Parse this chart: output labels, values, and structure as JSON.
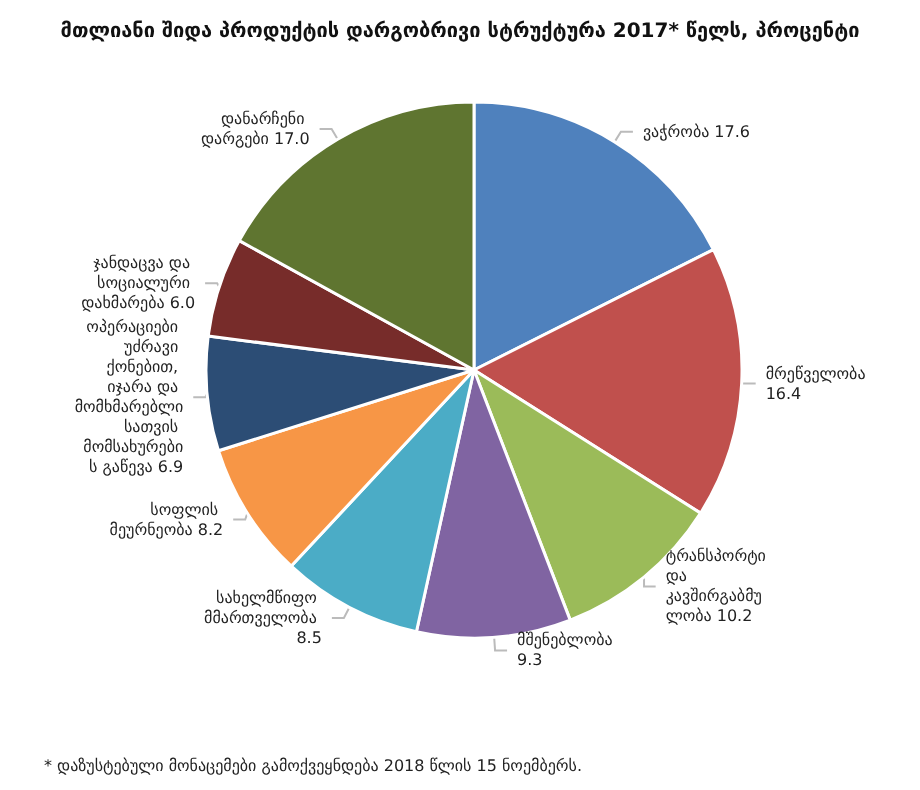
{
  "chart_data": {
    "type": "pie",
    "title": "მთლიანი შიდა პროდუქტის დარგობრივი სტრუქტურა 2017* წელს, პროცენტი",
    "categories": [
      "ვაჭრობა",
      "მრეწველობა",
      "ტრანსპორტი და კავშირგაბმულობა",
      "მშენებლობა",
      "სახელმწიფო მმართველობა",
      "სოფლის მეურნეობა",
      "ოპერაციები უძრავი ქონებით, იჯარა და მომხმარებლისათვის მომსახურების გაწევა",
      "ჯანდაცვა და სოციალური დახმარება",
      "დანარჩენი დარგები"
    ],
    "values": [
      17.6,
      16.4,
      10.2,
      9.3,
      8.5,
      8.2,
      6.9,
      6.0,
      17.0
    ],
    "colors": [
      "#4f81bd",
      "#c0504d",
      "#9bbb59",
      "#8064a2",
      "#4bacc6",
      "#f79646",
      "#2c4d75",
      "#772c2a",
      "#5f7530"
    ],
    "value_labels": [
      "17.6",
      "16.4",
      "10.2",
      "9.3",
      "8.5",
      "8.2",
      "6.9",
      "6.0",
      "17.0"
    ],
    "annotations": [
      "* დაზუსტებული მონაცემები გამოქვეყნდება 2018 წლის 15 ნოემბერს."
    ],
    "legend": false
  }
}
